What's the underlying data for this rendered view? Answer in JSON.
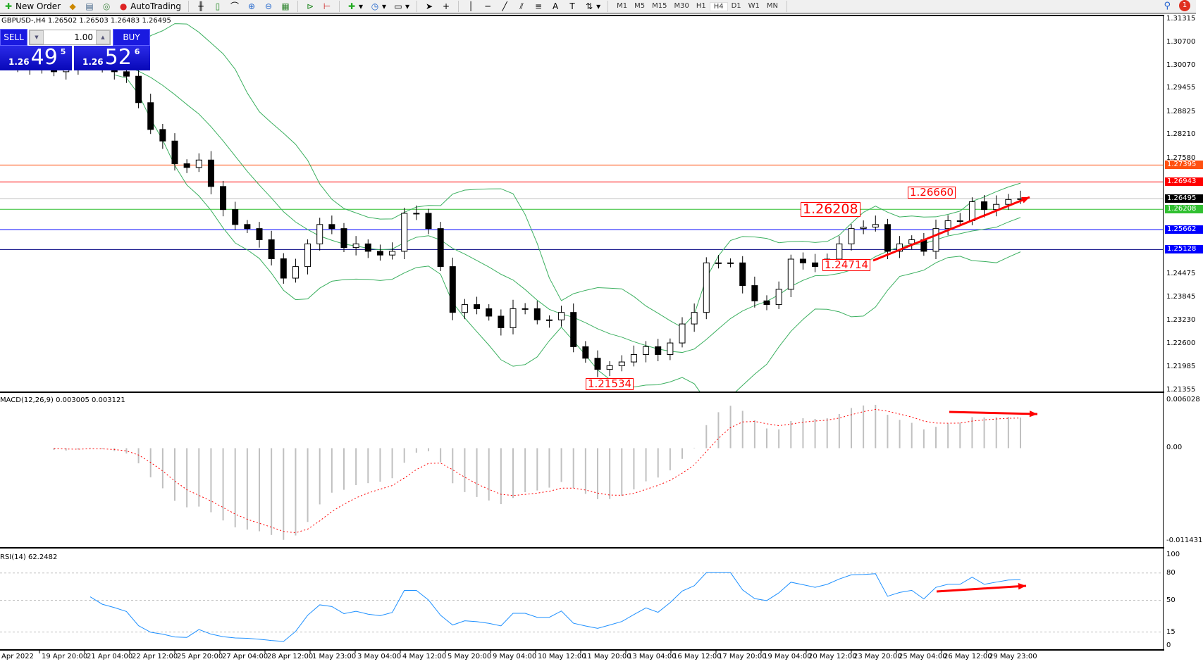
{
  "toolbar": {
    "new_order": "New Order",
    "autotrading": "AutoTrading",
    "timeframes": [
      "M1",
      "M5",
      "M15",
      "M30",
      "H1",
      "H4",
      "D1",
      "W1",
      "MN"
    ],
    "active_timeframe": "H4",
    "notifications": "1"
  },
  "chart_header": "GBPUSD-,H4  1.26502 1.26503 1.26483 1.26495",
  "trade_panel": {
    "sell": "SELL",
    "buy": "BUY",
    "volume": "1.00",
    "sell_price": {
      "prefix": "1.26",
      "big": "49",
      "small": "5"
    },
    "buy_price": {
      "prefix": "1.26",
      "big": "52",
      "small": "6"
    },
    "color": "#1a1ae0"
  },
  "price_axis": [
    "1.31315",
    "1.30700",
    "1.30070",
    "1.29455",
    "1.28825",
    "1.28210",
    "1.27580",
    "1.24475",
    "1.23845",
    "1.23230",
    "1.22600",
    "1.21985",
    "1.21355"
  ],
  "levels": [
    {
      "price": "1.27395",
      "color": "#ff5010"
    },
    {
      "price": "1.26943",
      "color": "#ff0000"
    },
    {
      "price": "1.26495",
      "color": "#000000",
      "line": "#c0c0c0"
    },
    {
      "price": "1.26208",
      "color": "#30c030"
    },
    {
      "price": "1.25662",
      "color": "#0000ff"
    },
    {
      "price": "1.25128",
      "color": "#0000ff",
      "line": "#000080"
    }
  ],
  "annotations": [
    "1.26208",
    "1.26660",
    "1.24714",
    "1.21534"
  ],
  "time_axis": [
    "Apr 2022",
    "19 Apr 20:00",
    "21 Apr 04:00",
    "22 Apr 12:00",
    "25 Apr 20:00",
    "27 Apr 04:00",
    "28 Apr 12:00",
    "1 May 23:00",
    "3 May 04:00",
    "4 May 12:00",
    "5 May 20:00",
    "9 May 04:00",
    "10 May 12:00",
    "11 May 20:00",
    "13 May 04:00",
    "16 May 12:00",
    "17 May 20:00",
    "19 May 04:00",
    "20 May 12:00",
    "23 May 20:00",
    "25 May 04:00",
    "26 May 12:00",
    "29 May 23:00"
  ],
  "macd": {
    "label": "MACD(12,26,9) 0.003005 0.003121",
    "axis": [
      "0.006028",
      "0.00",
      "-0.011431"
    ]
  },
  "rsi": {
    "label": "RSI(14) 62.2482",
    "axis": [
      "100",
      "80",
      "50",
      "15",
      "0"
    ]
  },
  "chart_data": {
    "type": "candlestick",
    "symbol": "GBPUSD",
    "timeframe": "H4",
    "ylim": [
      1.21355,
      1.31315
    ],
    "closes": [
      1.301,
      1.303,
      1.3,
      1.302,
      1.299,
      1.3,
      1.301,
      1.302,
      1.3,
      1.299,
      1.2978,
      1.2907,
      1.2835,
      1.2804,
      1.2743,
      1.2733,
      1.2753,
      1.2682,
      1.262,
      1.258,
      1.2569,
      1.2539,
      1.2488,
      1.2436,
      1.2467,
      1.2528,
      1.258,
      1.2569,
      1.2518,
      1.2528,
      1.2508,
      1.2498,
      1.2508,
      1.261,
      1.261,
      1.2569,
      1.2467,
      1.2344,
      1.2365,
      1.2354,
      1.2334,
      1.2303,
      1.2354,
      1.2354,
      1.2324,
      1.2324,
      1.2344,
      1.2252,
      1.2221,
      1.2191,
      1.2201,
      1.2211,
      1.2231,
      1.2252,
      1.2231,
      1.2262,
      1.2313,
      1.2344,
      1.2477,
      1.2477,
      1.2477,
      1.2416,
      1.2375,
      1.2365,
      1.2406,
      1.2487,
      1.2477,
      1.2467,
      1.2487,
      1.2528,
      1.2569,
      1.2573,
      1.258,
      1.2508,
      1.2528,
      1.2539,
      1.2508,
      1.2569,
      1.259,
      1.259,
      1.2641,
      1.262,
      1.2634,
      1.2647,
      1.26495
    ],
    "indicators": [
      "Bollinger Bands",
      "MACD(12,26,9)",
      "RSI(14)"
    ],
    "rsi_levels": [
      80,
      50,
      15
    ],
    "macd_ylim": [
      -0.011431,
      0.006028
    ],
    "rsi_ylim": [
      0,
      100
    ]
  }
}
